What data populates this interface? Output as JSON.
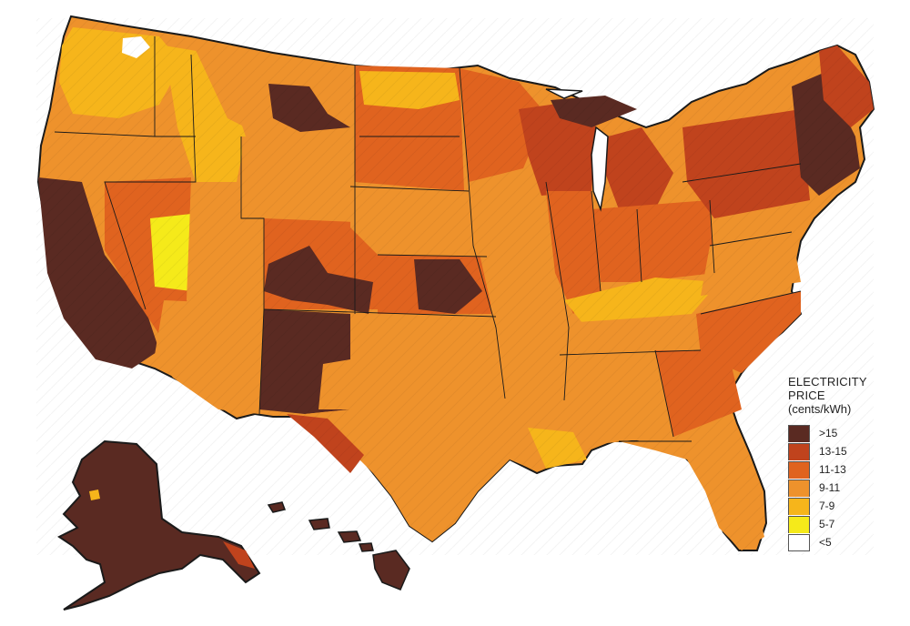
{
  "legend": {
    "title": "ELECTRICITY PRICE",
    "subtitle": "(cents/kWh)",
    "items": [
      {
        "label": ">15",
        "color": "#5a2a22"
      },
      {
        "label": "13-15",
        "color": "#c0431d"
      },
      {
        "label": "11-13",
        "color": "#e0631f"
      },
      {
        "label": "9-11",
        "color": "#ee922c"
      },
      {
        "label": "7-9",
        "color": "#f6b51b"
      },
      {
        "label": "5-7",
        "color": "#f5ea1a"
      },
      {
        "label": "<5",
        "color": "#ffffff"
      }
    ]
  },
  "map": {
    "region_fills": {
      "over_15": [
        "california",
        "alaska",
        "hawaii",
        "new-england",
        "new-mexico-north",
        "colorado-west",
        "montana-central"
      ],
      "13_15": [
        "michigan",
        "new-york",
        "maine",
        "texas-west",
        "wisconsin"
      ],
      "11_13": [
        "ohio",
        "pennsylvania",
        "kansas",
        "nebraska",
        "south-carolina"
      ],
      "9_11": [
        "texas",
        "oklahoma",
        "missouri",
        "iowa",
        "arizona",
        "georgia",
        "florida",
        "washington",
        "oregon"
      ],
      "7_9": [
        "kentucky",
        "tennessee",
        "louisiana",
        "idaho",
        "utah",
        "west-virginia"
      ],
      "5_7": [
        "nevada-east",
        "utah-west"
      ],
      "under_5": [
        "washington-central"
      ]
    }
  }
}
